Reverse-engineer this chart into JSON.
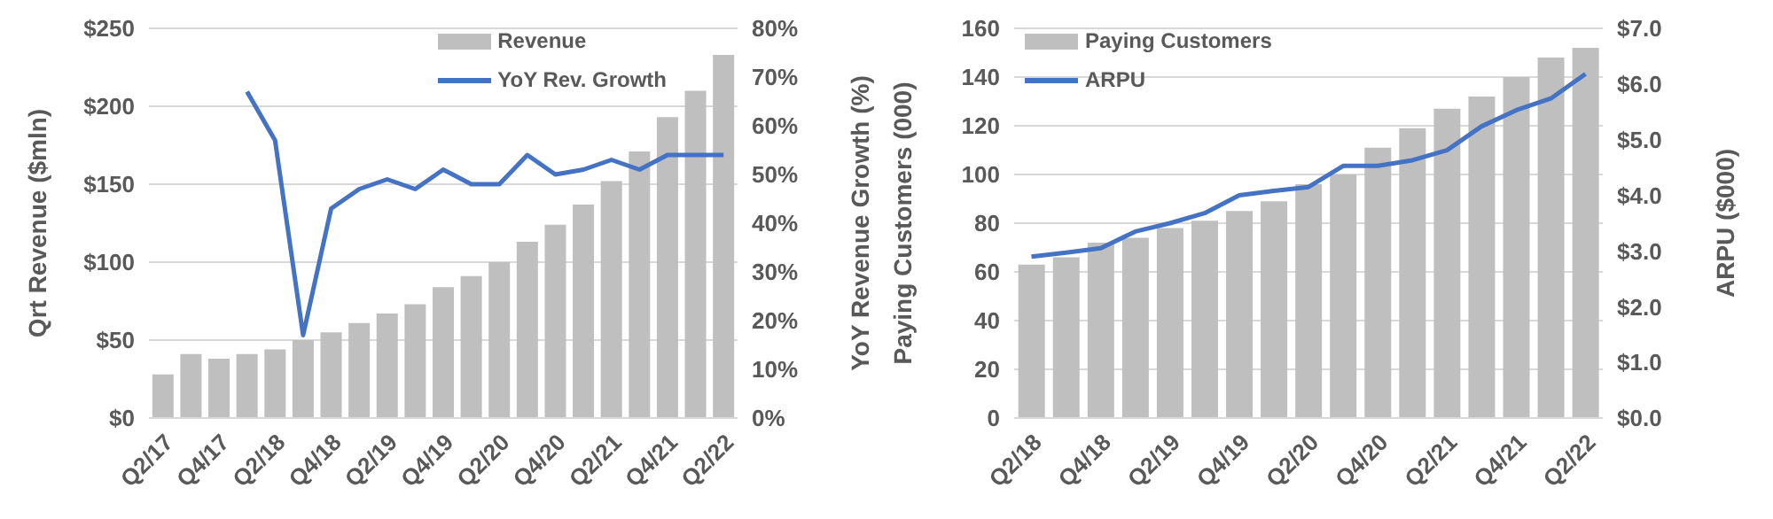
{
  "chart_data": [
    {
      "type": "bar",
      "categories": [
        "Q2/17",
        null,
        "Q4/17",
        null,
        "Q2/18",
        null,
        "Q4/18",
        null,
        "Q2/19",
        null,
        "Q4/19",
        null,
        "Q2/20",
        null,
        "Q4/20",
        null,
        "Q2/21",
        null,
        "Q4/21",
        null,
        "Q2/22"
      ],
      "series": [
        {
          "name": "Revenue",
          "color": "#bfbfbf",
          "values": [
            28,
            41,
            38,
            41,
            44,
            50,
            55,
            61,
            67,
            73,
            84,
            91,
            100,
            113,
            124,
            137,
            152,
            171,
            193,
            210,
            233
          ]
        },
        {
          "name": "YoY Rev. Growth",
          "type": "line",
          "axis": "y2",
          "color": "#4472c4",
          "values": [
            null,
            null,
            null,
            67,
            57,
            17,
            43,
            47,
            49,
            47,
            51,
            48,
            48,
            54,
            50,
            51,
            53,
            51,
            54,
            54,
            54
          ]
        }
      ],
      "ylabel": "Qrt Revenue ($mln)",
      "y2label": "YoY Revenue Growth (%)",
      "ylim": [
        0,
        250
      ],
      "yticks": [
        {
          "value": 0,
          "label": "$0"
        },
        {
          "value": 50,
          "label": "$50"
        },
        {
          "value": 100,
          "label": "$100"
        },
        {
          "value": 150,
          "label": "$150"
        },
        {
          "value": 200,
          "label": "$200"
        },
        {
          "value": 250,
          "label": "$250"
        }
      ],
      "y2lim": [
        0,
        80
      ],
      "y2ticks": [
        {
          "value": 0,
          "label": "0%"
        },
        {
          "value": 10,
          "label": "10%"
        },
        {
          "value": 20,
          "label": "20%"
        },
        {
          "value": 30,
          "label": "30%"
        },
        {
          "value": 40,
          "label": "40%"
        },
        {
          "value": 50,
          "label": "50%"
        },
        {
          "value": 60,
          "label": "60%"
        },
        {
          "value": 70,
          "label": "70%"
        },
        {
          "value": 80,
          "label": "80%"
        }
      ],
      "grid": "y",
      "legend": "top right"
    },
    {
      "type": "bar",
      "categories": [
        "Q2/18",
        null,
        "Q4/18",
        null,
        "Q2/19",
        null,
        "Q4/19",
        null,
        "Q2/20",
        null,
        "Q4/20",
        null,
        "Q2/21",
        null,
        "Q4/21",
        null,
        "Q2/22"
      ],
      "series": [
        {
          "name": "Paying Customers",
          "color": "#bfbfbf",
          "values": [
            63,
            66,
            72,
            74,
            78,
            81,
            85,
            89,
            96,
            100,
            111,
            119,
            127,
            132,
            140,
            148,
            152
          ]
        },
        {
          "name": "ARPU",
          "type": "line",
          "axis": "y2",
          "color": "#4472c4",
          "values": [
            2.9,
            2.97,
            3.05,
            3.35,
            3.5,
            3.68,
            4.0,
            4.08,
            4.15,
            4.53,
            4.53,
            4.63,
            4.81,
            5.24,
            5.53,
            5.74,
            6.18
          ]
        }
      ],
      "ylabel": "Paying Customers (000)",
      "y2label": "ARPU ($000)",
      "ylim": [
        0,
        160
      ],
      "yticks": [
        0,
        20,
        40,
        60,
        80,
        100,
        120,
        140,
        160
      ],
      "y2lim": [
        0,
        7
      ],
      "y2ticks": [
        {
          "value": 0,
          "label": "$0.0"
        },
        {
          "value": 1,
          "label": "$1.0"
        },
        {
          "value": 2,
          "label": "$2.0"
        },
        {
          "value": 3,
          "label": "$3.0"
        },
        {
          "value": 4,
          "label": "$4.0"
        },
        {
          "value": 5,
          "label": "$5.0"
        },
        {
          "value": 6,
          "label": "$6.0"
        },
        {
          "value": 7,
          "label": "$7.0"
        }
      ],
      "grid": "y",
      "legend": "top left"
    }
  ]
}
